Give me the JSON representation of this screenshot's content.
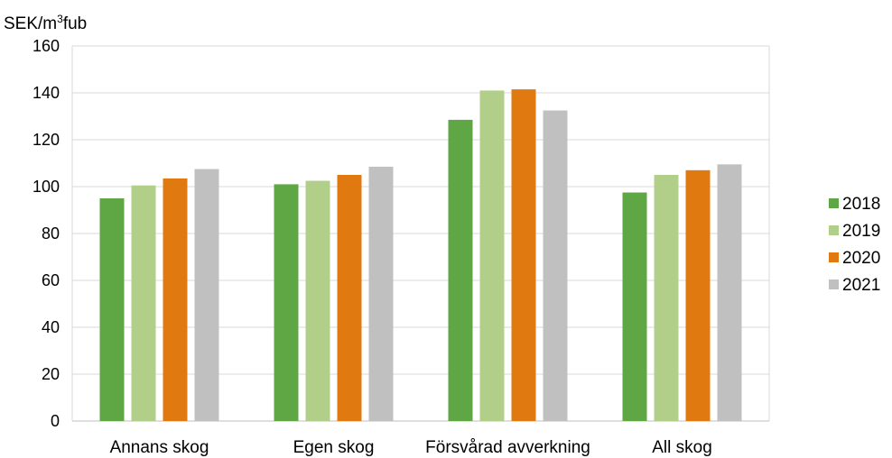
{
  "chart_data": {
    "type": "bar",
    "ylabel": "SEK/m³fub",
    "ylim": [
      0,
      160
    ],
    "yticks": [
      0,
      20,
      40,
      60,
      80,
      100,
      120,
      140,
      160
    ],
    "categories": [
      "Annans skog",
      "Egen skog",
      "Försvårad avverkning",
      "All skog"
    ],
    "series": [
      {
        "name": "2018",
        "color": "#5fa744",
        "values": [
          95,
          101,
          128.5,
          97.5
        ]
      },
      {
        "name": "2019",
        "color": "#b2cf8a",
        "values": [
          100.5,
          102.5,
          141,
          105
        ]
      },
      {
        "name": "2020",
        "color": "#e07a10",
        "values": [
          103.5,
          105,
          141.5,
          107
        ]
      },
      {
        "name": "2021",
        "color": "#c0c0c0",
        "values": [
          107.5,
          108.5,
          132.5,
          109.5
        ]
      }
    ],
    "grid": true,
    "legend_position": "right"
  }
}
